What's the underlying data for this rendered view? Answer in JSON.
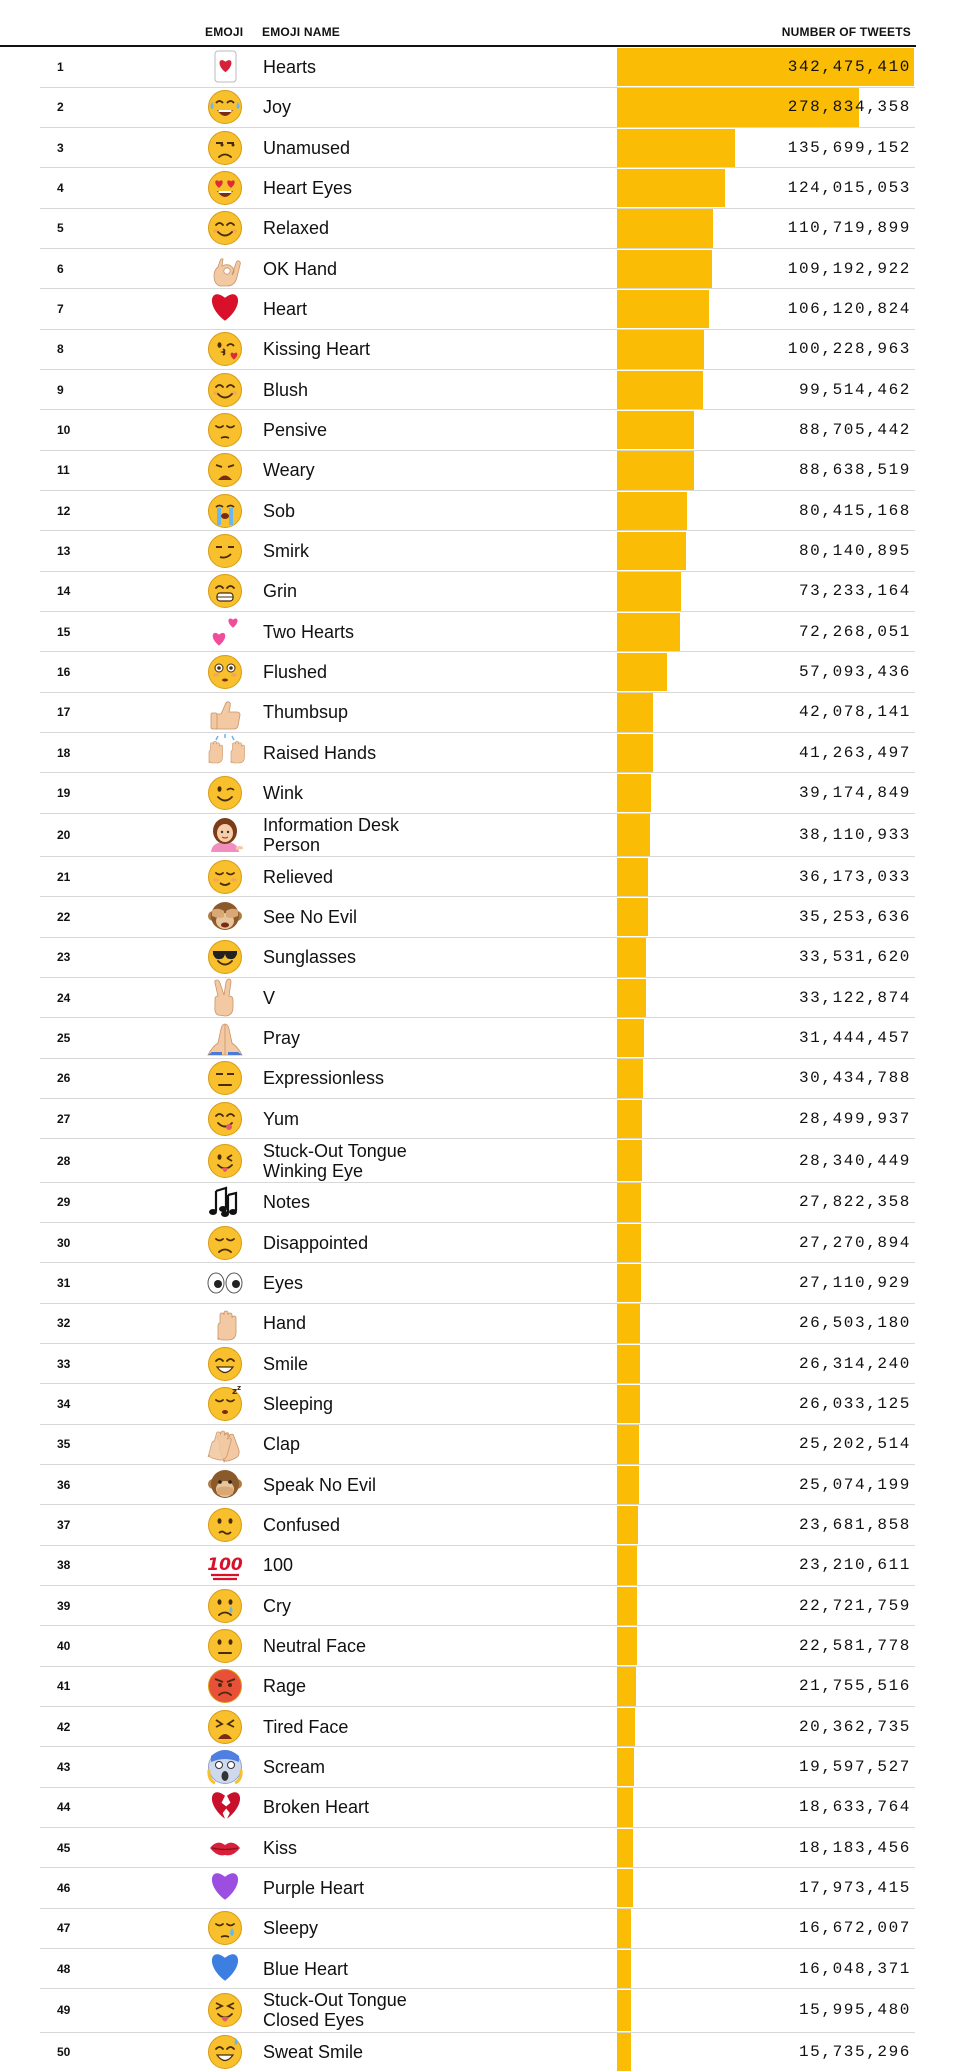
{
  "header": {
    "emoji_label": "EMOJI",
    "name_label": "EMOJI NAME",
    "tweets_label": "NUMBER OF TWEETS"
  },
  "chart_data": {
    "type": "bar",
    "orientation": "horizontal",
    "color": "#fbbc05",
    "xlim": [
      0,
      342475410
    ],
    "rows": [
      {
        "rank": 1,
        "name": "Hearts",
        "emoji": "hearts-card",
        "value": 342475410,
        "value_label": "342,475,410"
      },
      {
        "rank": 2,
        "name": "Joy",
        "emoji": "joy-face",
        "value": 278834358,
        "value_label": "278,834,358"
      },
      {
        "rank": 3,
        "name": "Unamused",
        "emoji": "unamused-face",
        "value": 135699152,
        "value_label": "135,699,152"
      },
      {
        "rank": 4,
        "name": "Heart Eyes",
        "emoji": "heart-eyes-face",
        "value": 124015053,
        "value_label": "124,015,053"
      },
      {
        "rank": 5,
        "name": "Relaxed",
        "emoji": "relaxed-face",
        "value": 110719899,
        "value_label": "110,719,899"
      },
      {
        "rank": 6,
        "name": "OK Hand",
        "emoji": "ok-hand",
        "value": 109192922,
        "value_label": "109,192,922"
      },
      {
        "rank": 7,
        "name": "Heart",
        "emoji": "red-heart",
        "value": 106120824,
        "value_label": "106,120,824"
      },
      {
        "rank": 8,
        "name": "Kissing Heart",
        "emoji": "kissing-heart-face",
        "value": 100228963,
        "value_label": "100,228,963"
      },
      {
        "rank": 9,
        "name": "Blush",
        "emoji": "blush-face",
        "value": 99514462,
        "value_label": "99,514,462"
      },
      {
        "rank": 10,
        "name": "Pensive",
        "emoji": "pensive-face",
        "value": 88705442,
        "value_label": "88,705,442"
      },
      {
        "rank": 11,
        "name": "Weary",
        "emoji": "weary-face",
        "value": 88638519,
        "value_label": "88,638,519"
      },
      {
        "rank": 12,
        "name": "Sob",
        "emoji": "sob-face",
        "value": 80415168,
        "value_label": "80,415,168"
      },
      {
        "rank": 13,
        "name": "Smirk",
        "emoji": "smirk-face",
        "value": 80140895,
        "value_label": "80,140,895"
      },
      {
        "rank": 14,
        "name": "Grin",
        "emoji": "grin-face",
        "value": 73233164,
        "value_label": "73,233,164"
      },
      {
        "rank": 15,
        "name": "Two Hearts",
        "emoji": "two-hearts",
        "value": 72268051,
        "value_label": "72,268,051"
      },
      {
        "rank": 16,
        "name": "Flushed",
        "emoji": "flushed-face",
        "value": 57093436,
        "value_label": "57,093,436"
      },
      {
        "rank": 17,
        "name": "Thumbsup",
        "emoji": "thumbsup",
        "value": 42078141,
        "value_label": "42,078,141"
      },
      {
        "rank": 18,
        "name": "Raised Hands",
        "emoji": "raised-hands",
        "value": 41263497,
        "value_label": "41,263,497"
      },
      {
        "rank": 19,
        "name": "Wink",
        "emoji": "wink-face",
        "value": 39174849,
        "value_label": "39,174,849"
      },
      {
        "rank": 20,
        "name": "Information Desk Person",
        "emoji": "information-desk-person",
        "value": 38110933,
        "value_label": "38,110,933"
      },
      {
        "rank": 21,
        "name": "Relieved",
        "emoji": "relieved-face",
        "value": 36173033,
        "value_label": "36,173,033"
      },
      {
        "rank": 22,
        "name": "See No Evil",
        "emoji": "see-no-evil-monkey",
        "value": 35253636,
        "value_label": "35,253,636"
      },
      {
        "rank": 23,
        "name": "Sunglasses",
        "emoji": "sunglasses-face",
        "value": 33531620,
        "value_label": "33,531,620"
      },
      {
        "rank": 24,
        "name": "V",
        "emoji": "victory-hand",
        "value": 33122874,
        "value_label": "33,122,874"
      },
      {
        "rank": 25,
        "name": "Pray",
        "emoji": "pray-hands",
        "value": 31444457,
        "value_label": "31,444,457"
      },
      {
        "rank": 26,
        "name": "Expressionless",
        "emoji": "expressionless-face",
        "value": 30434788,
        "value_label": "30,434,788"
      },
      {
        "rank": 27,
        "name": "Yum",
        "emoji": "yum-face",
        "value": 28499937,
        "value_label": "28,499,937"
      },
      {
        "rank": 28,
        "name": "Stuck-Out Tongue Winking Eye",
        "emoji": "tongue-wink-face",
        "value": 28340449,
        "value_label": "28,340,449"
      },
      {
        "rank": 29,
        "name": "Notes",
        "emoji": "music-notes",
        "value": 27822358,
        "value_label": "27,822,358"
      },
      {
        "rank": 30,
        "name": "Disappointed",
        "emoji": "disappointed-face",
        "value": 27270894,
        "value_label": "27,270,894"
      },
      {
        "rank": 31,
        "name": "Eyes",
        "emoji": "eyes",
        "value": 27110929,
        "value_label": "27,110,929"
      },
      {
        "rank": 32,
        "name": "Hand",
        "emoji": "raised-hand",
        "value": 26503180,
        "value_label": "26,503,180"
      },
      {
        "rank": 33,
        "name": "Smile",
        "emoji": "smile-face",
        "value": 26314240,
        "value_label": "26,314,240"
      },
      {
        "rank": 34,
        "name": "Sleeping",
        "emoji": "sleeping-face",
        "value": 26033125,
        "value_label": "26,033,125"
      },
      {
        "rank": 35,
        "name": "Clap",
        "emoji": "clapping-hands",
        "value": 25202514,
        "value_label": "25,202,514"
      },
      {
        "rank": 36,
        "name": "Speak No Evil",
        "emoji": "speak-no-evil-monkey",
        "value": 25074199,
        "value_label": "25,074,199"
      },
      {
        "rank": 37,
        "name": "Confused",
        "emoji": "confused-face",
        "value": 23681858,
        "value_label": "23,681,858"
      },
      {
        "rank": 38,
        "name": "100",
        "emoji": "hundred-points",
        "value": 23210611,
        "value_label": "23,210,611"
      },
      {
        "rank": 39,
        "name": "Cry",
        "emoji": "cry-face",
        "value": 22721759,
        "value_label": "22,721,759"
      },
      {
        "rank": 40,
        "name": "Neutral Face",
        "emoji": "neutral-face",
        "value": 22581778,
        "value_label": "22,581,778"
      },
      {
        "rank": 41,
        "name": "Rage",
        "emoji": "rage-face",
        "value": 21755516,
        "value_label": "21,755,516"
      },
      {
        "rank": 42,
        "name": "Tired Face",
        "emoji": "tired-face",
        "value": 20362735,
        "value_label": "20,362,735"
      },
      {
        "rank": 43,
        "name": "Scream",
        "emoji": "scream-face",
        "value": 19597527,
        "value_label": "19,597,527"
      },
      {
        "rank": 44,
        "name": "Broken Heart",
        "emoji": "broken-heart",
        "value": 18633764,
        "value_label": "18,633,764"
      },
      {
        "rank": 45,
        "name": "Kiss",
        "emoji": "kiss-mark",
        "value": 18183456,
        "value_label": "18,183,456"
      },
      {
        "rank": 46,
        "name": "Purple Heart",
        "emoji": "purple-heart",
        "value": 17973415,
        "value_label": "17,973,415"
      },
      {
        "rank": 47,
        "name": "Sleepy",
        "emoji": "sleepy-face",
        "value": 16672007,
        "value_label": "16,672,007"
      },
      {
        "rank": 48,
        "name": "Blue Heart",
        "emoji": "blue-heart",
        "value": 16048371,
        "value_label": "16,048,371"
      },
      {
        "rank": 49,
        "name": "Stuck-Out Tongue Closed Eyes",
        "emoji": "tongue-closed-eyes-face",
        "value": 15995480,
        "value_label": "15,995,480"
      },
      {
        "rank": 50,
        "name": "Sweat Smile",
        "emoji": "sweat-smile-face",
        "value": 15735296,
        "value_label": "15,735,296"
      }
    ]
  }
}
